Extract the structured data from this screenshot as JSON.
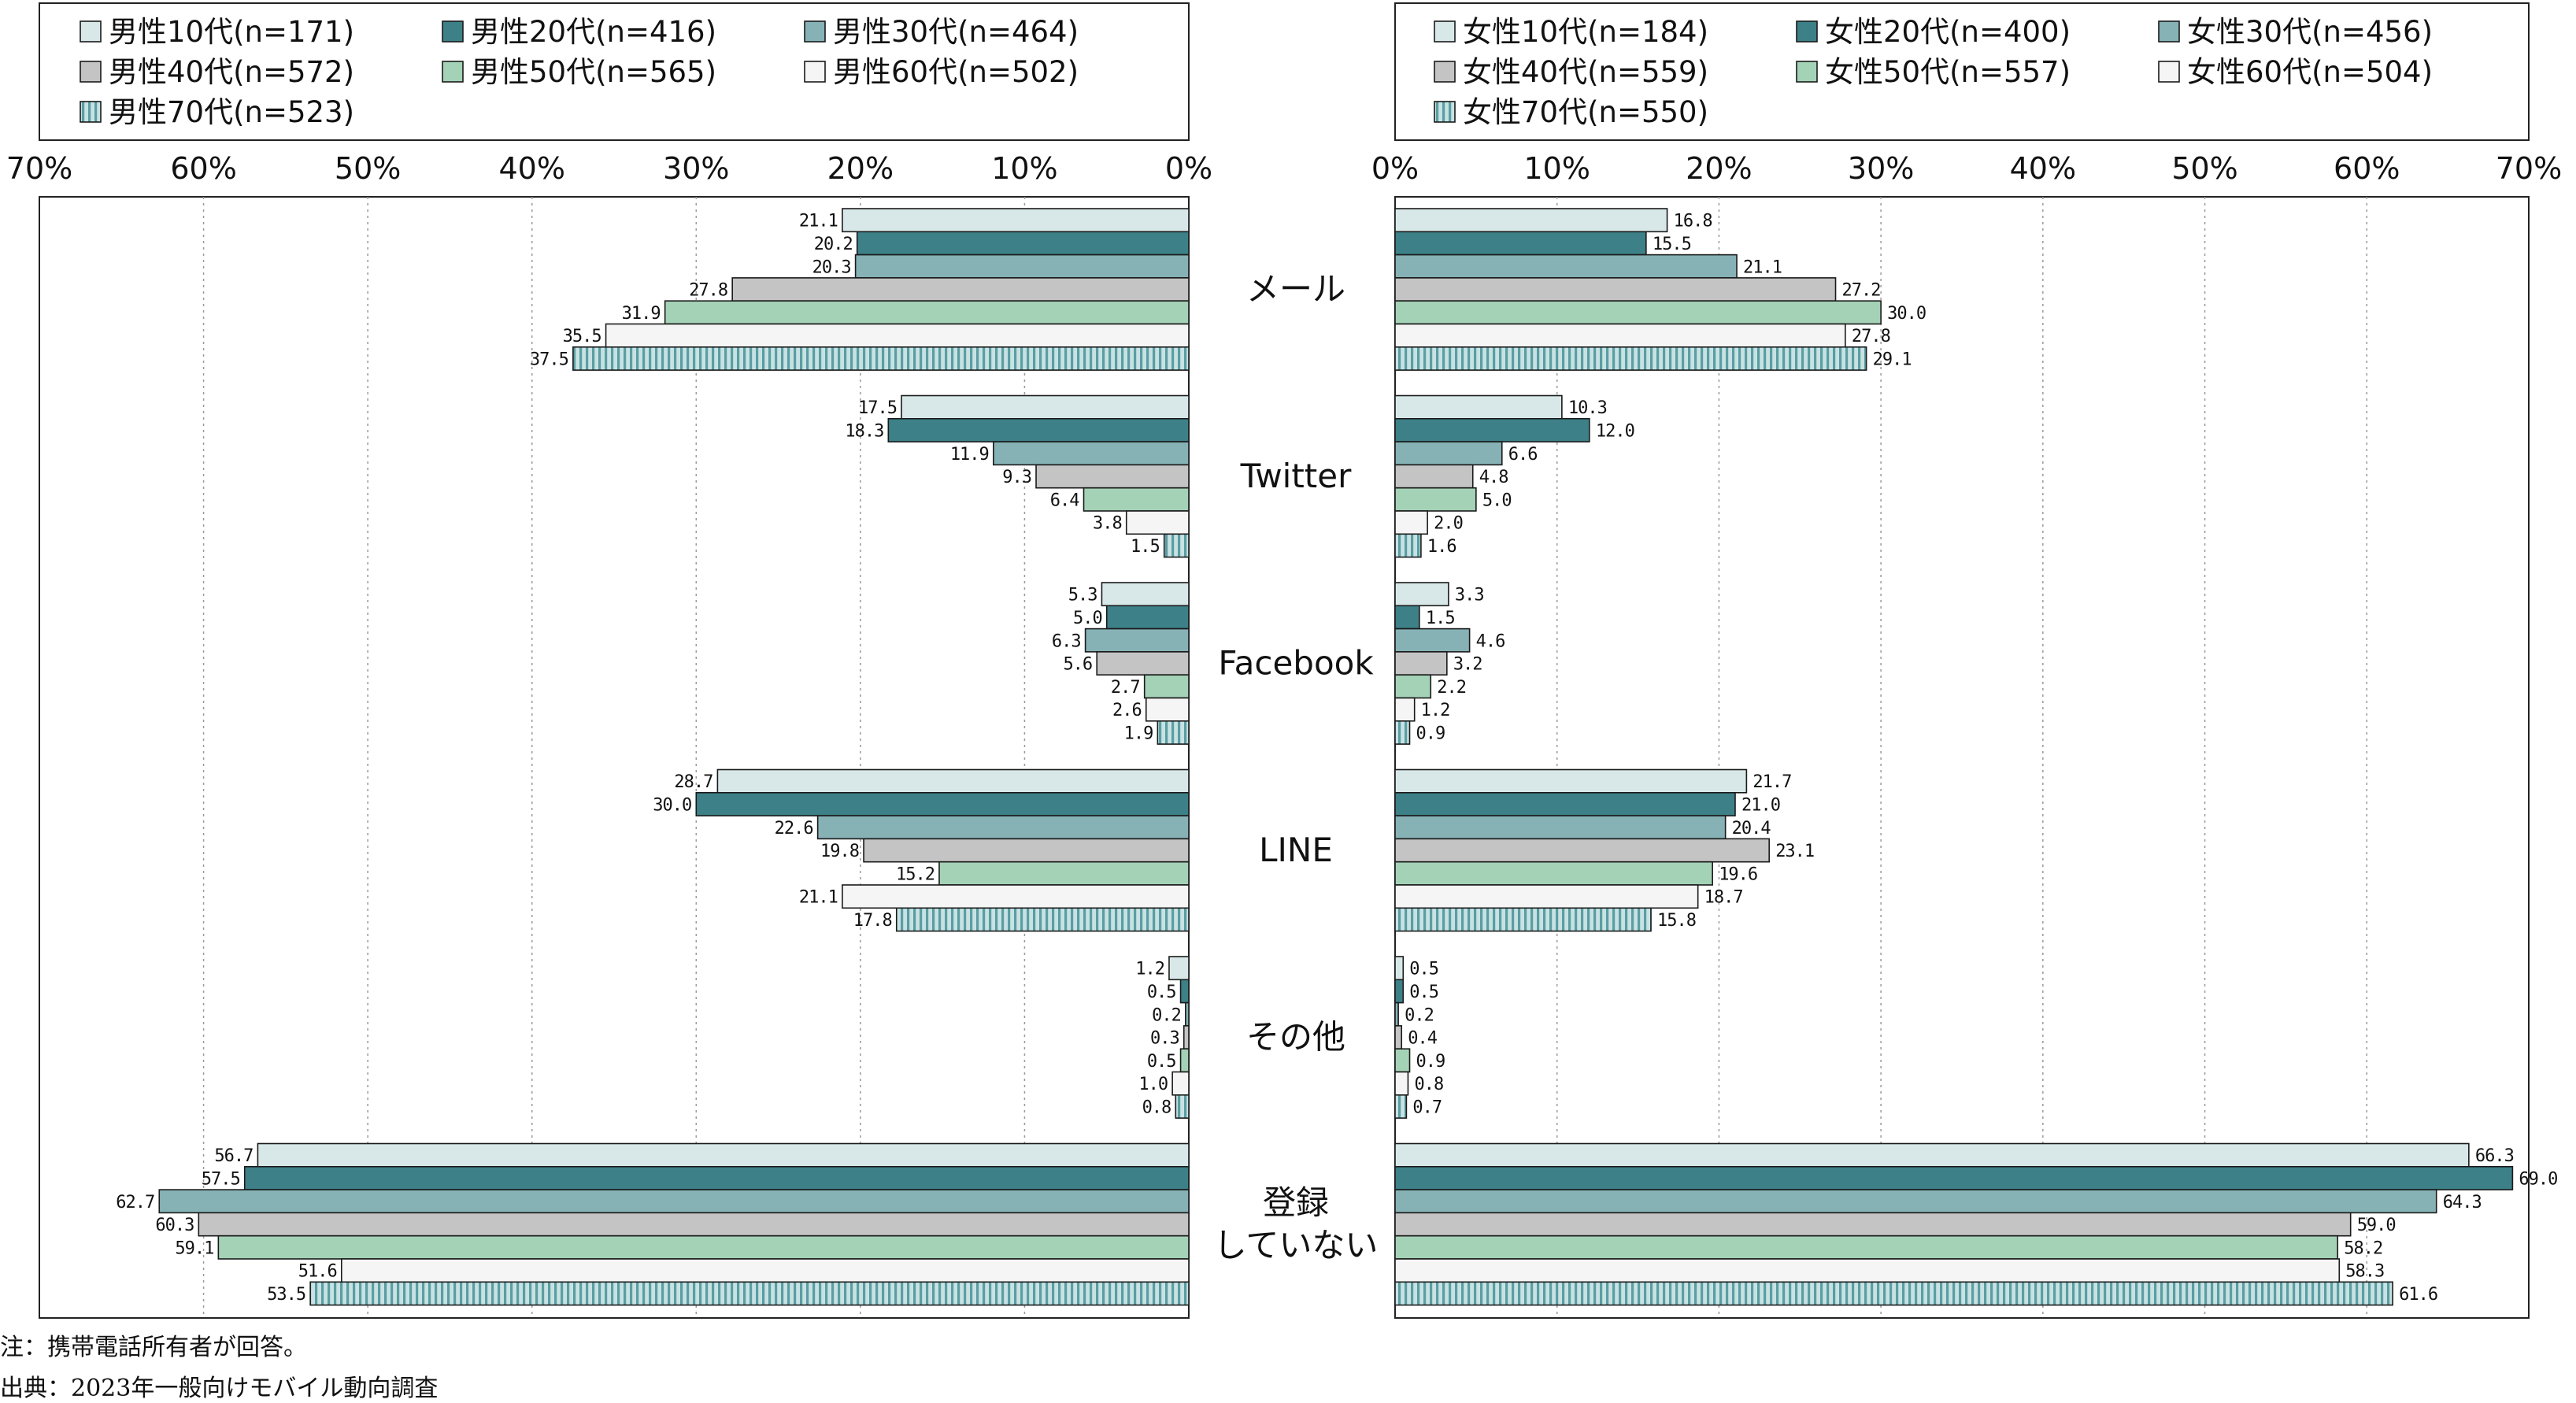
{
  "chart_data": [
    {
      "type": "bar",
      "orientation": "horizontal",
      "panel": "male",
      "categories": [
        "メール",
        "Twitter",
        "Facebook",
        "LINE",
        "その他",
        "登録\nしていない"
      ],
      "xlim": [
        0,
        70
      ],
      "x_ticks": [
        "70%",
        "60%",
        "50%",
        "40%",
        "30%",
        "20%",
        "10%",
        "0%"
      ],
      "x_reversed": true,
      "grid": true,
      "legend_position": "top",
      "series": [
        {
          "name": "男性10代(n=171)",
          "values": [
            21.1,
            17.5,
            5.3,
            28.7,
            1.2,
            56.7
          ],
          "labels": [
            "21.1",
            "17.5",
            "5.3",
            "28.7",
            "1.2",
            "56.7"
          ]
        },
        {
          "name": "男性20代(n=416)",
          "values": [
            20.2,
            18.3,
            5.0,
            30.0,
            0.5,
            57.5
          ],
          "labels": [
            "20.2",
            "18.3",
            "5.0",
            "30.0",
            "0.5",
            "57.5"
          ]
        },
        {
          "name": "男性30代(n=464)",
          "values": [
            20.3,
            11.9,
            6.3,
            22.6,
            0.2,
            62.7
          ],
          "labels": [
            "20.3",
            "11.9",
            "6.3",
            "22.6",
            "0.2",
            "62.7"
          ]
        },
        {
          "name": "男性40代(n=572)",
          "values": [
            27.8,
            9.3,
            5.6,
            19.8,
            0.3,
            60.3
          ],
          "labels": [
            "27.8",
            "9.3",
            "5.6",
            "19.8",
            "0.3",
            "60.3"
          ]
        },
        {
          "name": "男性50代(n=565)",
          "values": [
            31.9,
            6.4,
            2.7,
            15.2,
            0.5,
            59.1
          ],
          "labels": [
            "31.9",
            "6.4",
            "2.7",
            "15.2",
            "0.5",
            "59.1"
          ]
        },
        {
          "name": "男性60代(n=502)",
          "values": [
            35.5,
            3.8,
            2.6,
            21.1,
            1.0,
            51.6
          ],
          "labels": [
            "35.5",
            "3.8",
            "2.6",
            "21.1",
            "1.0",
            "51.6"
          ]
        },
        {
          "name": "男性70代(n=523)",
          "values": [
            37.5,
            1.5,
            1.9,
            17.8,
            0.8,
            53.5
          ],
          "labels": [
            "37.5",
            "1.5",
            "1.9",
            "17.8",
            "0.8",
            "53.5"
          ]
        }
      ]
    },
    {
      "type": "bar",
      "orientation": "horizontal",
      "panel": "female",
      "categories": [
        "メール",
        "Twitter",
        "Facebook",
        "LINE",
        "その他",
        "登録\nしていない"
      ],
      "xlim": [
        0,
        70
      ],
      "x_ticks": [
        "0%",
        "10%",
        "20%",
        "30%",
        "40%",
        "50%",
        "60%",
        "70%"
      ],
      "x_reversed": false,
      "grid": true,
      "legend_position": "top",
      "series": [
        {
          "name": "女性10代(n=184)",
          "values": [
            16.8,
            10.3,
            3.3,
            21.7,
            0.5,
            66.3
          ],
          "labels": [
            "16.8",
            "10.3",
            "3.3",
            "21.7",
            "0.5",
            "66.3"
          ]
        },
        {
          "name": "女性20代(n=400)",
          "values": [
            15.5,
            12.0,
            1.5,
            21.0,
            0.5,
            69.0
          ],
          "labels": [
            "15.5",
            "12.0",
            "1.5",
            "21.0",
            "0.5",
            "69.0"
          ]
        },
        {
          "name": "女性30代(n=456)",
          "values": [
            21.1,
            6.6,
            4.6,
            20.4,
            0.2,
            64.3
          ],
          "labels": [
            "21.1",
            "6.6",
            "4.6",
            "20.4",
            "0.2",
            "64.3"
          ]
        },
        {
          "name": "女性40代(n=559)",
          "values": [
            27.2,
            4.8,
            3.2,
            23.1,
            0.4,
            59.0
          ],
          "labels": [
            "27.2",
            "4.8",
            "3.2",
            "23.1",
            "0.4",
            "59.0"
          ]
        },
        {
          "name": "女性50代(n=557)",
          "values": [
            30.0,
            5.0,
            2.2,
            19.6,
            0.9,
            58.2
          ],
          "labels": [
            "30.0",
            "5.0",
            "2.2",
            "19.6",
            "0.9",
            "58.2"
          ]
        },
        {
          "name": "女性60代(n=504)",
          "values": [
            27.8,
            2.0,
            1.2,
            18.7,
            0.8,
            58.3
          ],
          "labels": [
            "27.8",
            "2.0",
            "1.2",
            "18.7",
            "0.8",
            "58.3"
          ]
        },
        {
          "name": "女性70代(n=550)",
          "values": [
            29.1,
            1.6,
            0.9,
            15.8,
            0.7,
            61.6
          ],
          "labels": [
            "29.1",
            "1.6",
            "0.9",
            "15.8",
            "0.7",
            "61.6"
          ]
        }
      ]
    }
  ],
  "series_styles": [
    {
      "fill": "#d8e8e8",
      "pattern": "none"
    },
    {
      "fill": "#3d8088",
      "pattern": "none"
    },
    {
      "fill": "#86b2b6",
      "pattern": "none"
    },
    {
      "fill": "#c4c4c4",
      "pattern": "none"
    },
    {
      "fill": "#a4d2b6",
      "pattern": "none"
    },
    {
      "fill": "#f5f5f5",
      "pattern": "none"
    },
    {
      "fill": "#c8e2e4",
      "pattern": "vertical-stripes",
      "stripe": "#5a9ea2"
    }
  ],
  "notes": {
    "note": "注：携帯電話所有者が回答。",
    "source": "出典：2023年一般向けモバイル動向調査"
  }
}
